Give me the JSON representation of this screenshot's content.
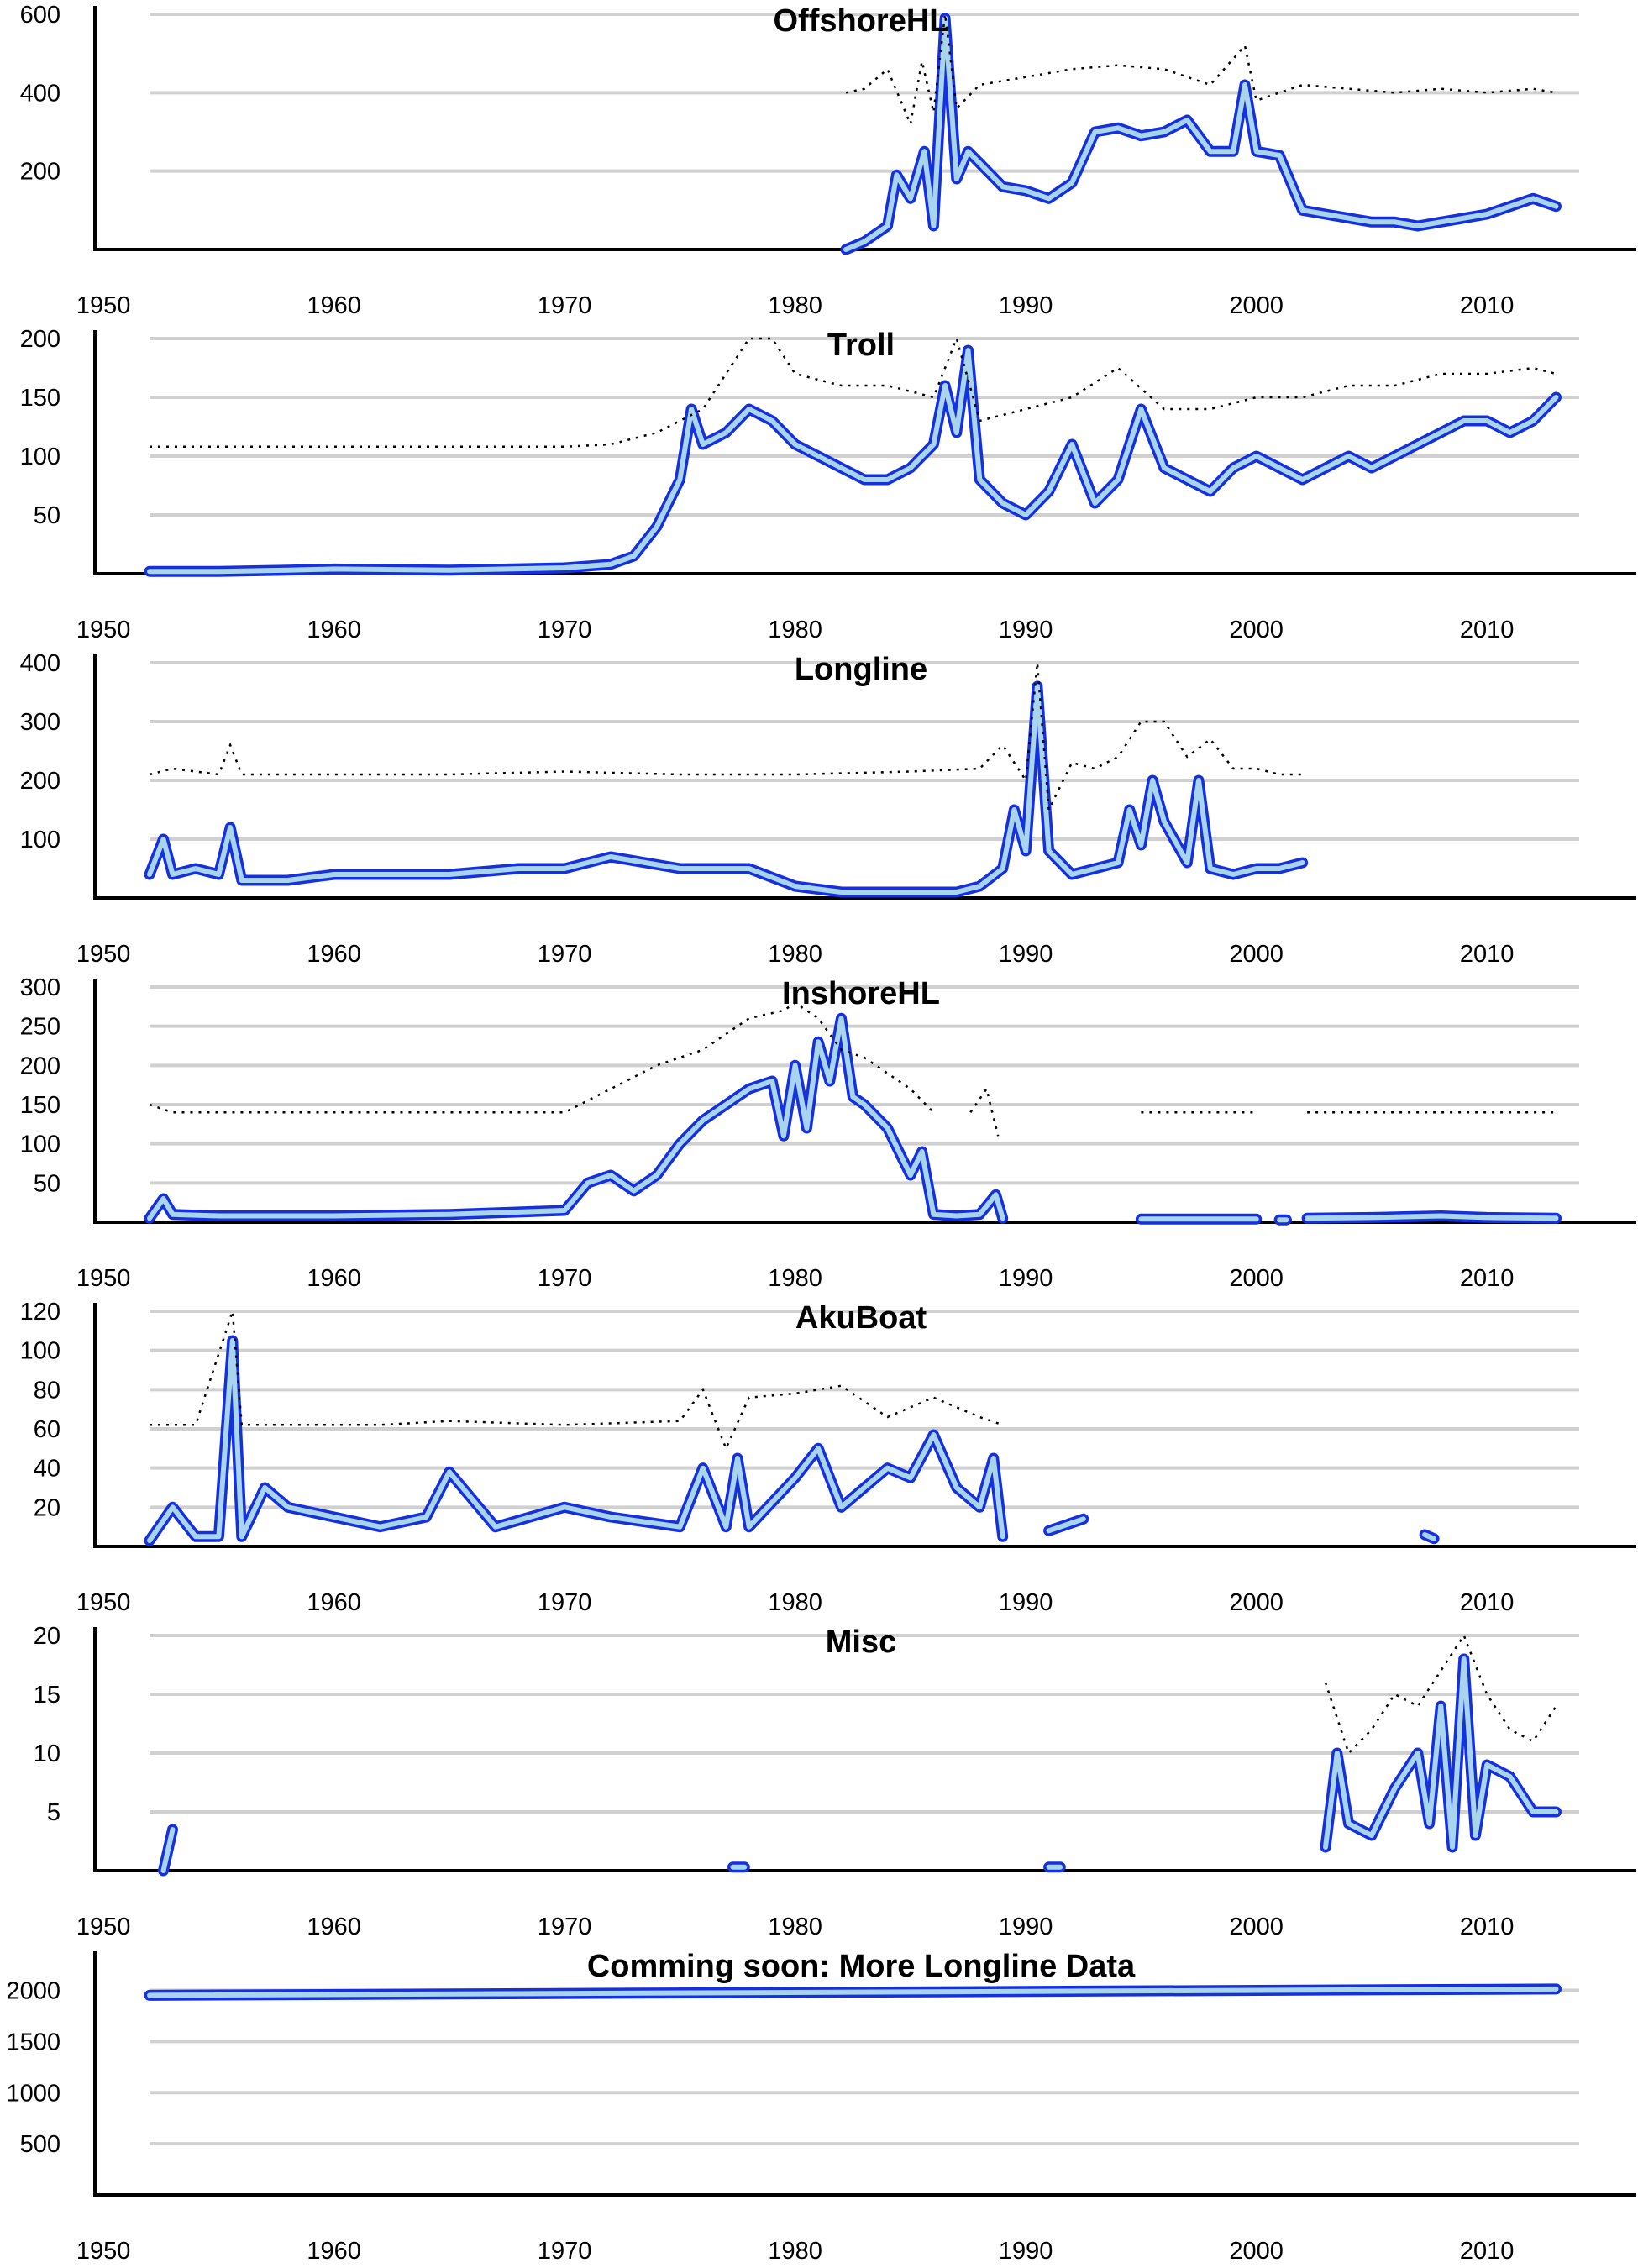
{
  "figure": {
    "background": "#ffffff",
    "band_outline_color": "#1530e0",
    "band_fill_color": "#a8d4ec",
    "reference_line_color": "#000000",
    "grid_color": "#d0d0d0"
  },
  "chart_data": [
    {
      "type": "line",
      "title": "OffshoreHL",
      "xlabel": "",
      "ylabel": "",
      "xlim": [
        1950,
        2013
      ],
      "ylim": [
        0,
        600
      ],
      "yticks": [
        200,
        400,
        600
      ],
      "xticks": [
        1950,
        1960,
        1970,
        1980,
        1990,
        2000,
        2010
      ],
      "grid": true,
      "series": [
        {
          "style": "band",
          "x": [
            1982.2,
            1983,
            1984,
            1984.4,
            1985,
            1985.6,
            1986,
            1986.5,
            1987,
            1987.5,
            1988,
            1989,
            1990,
            1991,
            1992,
            1993,
            1994,
            1995,
            1996,
            1997,
            1998,
            1999,
            1999.5,
            2000,
            2001,
            2002,
            2003,
            2004,
            2005,
            2006,
            2007,
            2008,
            2009,
            2010,
            2011,
            2012,
            2013
          ],
          "y": [
            0,
            20,
            60,
            190,
            130,
            250,
            60,
            590,
            180,
            250,
            220,
            160,
            150,
            130,
            170,
            300,
            310,
            290,
            300,
            330,
            250,
            250,
            420,
            250,
            240,
            100,
            90,
            80,
            70,
            70,
            60,
            70,
            80,
            90,
            110,
            130,
            110
          ]
        },
        {
          "style": "reference",
          "x": [
            1982.2,
            1983,
            1984,
            1985,
            1985.5,
            1986,
            1986.5,
            1987,
            1988,
            1990,
            1992,
            1994,
            1996,
            1998,
            1999.5,
            2000,
            2002,
            2004,
            2006,
            2008,
            2010,
            2012,
            2013
          ],
          "y": [
            400,
            410,
            460,
            320,
            480,
            350,
            600,
            360,
            420,
            440,
            460,
            470,
            460,
            420,
            520,
            380,
            420,
            410,
            400,
            410,
            400,
            410,
            400
          ]
        }
      ]
    },
    {
      "type": "line",
      "title": "Troll",
      "xlabel": "",
      "ylabel": "",
      "xlim": [
        1950,
        2013
      ],
      "ylim": [
        0,
        200
      ],
      "yticks": [
        50,
        100,
        150,
        200
      ],
      "xticks": [
        1950,
        1960,
        1970,
        1980,
        1990,
        2000,
        2010
      ],
      "grid": true,
      "series": [
        {
          "style": "band",
          "x": [
            1952,
            1955,
            1958,
            1960,
            1965,
            1970,
            1972,
            1973,
            1974,
            1975,
            1975.5,
            1976,
            1977,
            1978,
            1979,
            1980,
            1981,
            1982,
            1983,
            1984,
            1985,
            1986,
            1986.5,
            1987,
            1987.5,
            1988,
            1989,
            1990,
            1991,
            1992,
            1993,
            1994,
            1995,
            1996,
            1997,
            1998,
            1999,
            2000,
            2001,
            2002,
            2003,
            2004,
            2005,
            2006,
            2007,
            2008,
            2009,
            2010,
            2011,
            2012,
            2013
          ],
          "y": [
            2,
            2,
            3,
            4,
            3,
            5,
            8,
            15,
            40,
            80,
            140,
            110,
            120,
            140,
            130,
            110,
            100,
            90,
            80,
            80,
            90,
            110,
            160,
            120,
            190,
            80,
            60,
            50,
            70,
            110,
            60,
            80,
            140,
            90,
            80,
            70,
            90,
            100,
            90,
            80,
            90,
            100,
            90,
            100,
            110,
            120,
            130,
            130,
            120,
            130,
            150
          ]
        },
        {
          "style": "reference",
          "x": [
            1952,
            1955,
            1960,
            1965,
            1970,
            1972,
            1974,
            1976,
            1978,
            1979,
            1980,
            1982,
            1984,
            1986,
            1987,
            1988,
            1990,
            1992,
            1994,
            1996,
            1998,
            2000,
            2002,
            2004,
            2006,
            2008,
            2010,
            2012,
            2013
          ],
          "y": [
            108,
            108,
            108,
            108,
            108,
            110,
            120,
            140,
            210,
            200,
            170,
            160,
            160,
            150,
            215,
            130,
            140,
            150,
            175,
            140,
            140,
            150,
            150,
            160,
            160,
            170,
            170,
            175,
            170
          ]
        }
      ]
    },
    {
      "type": "line",
      "title": "Longline",
      "xlabel": "",
      "ylabel": "",
      "xlim": [
        1950,
        2013
      ],
      "ylim": [
        0,
        400
      ],
      "yticks": [
        100,
        200,
        300,
        400
      ],
      "xticks": [
        1950,
        1960,
        1970,
        1980,
        1990,
        2000,
        2010
      ],
      "grid": true,
      "series": [
        {
          "style": "band",
          "x": [
            1952,
            1952.6,
            1953,
            1954,
            1955,
            1955.5,
            1956,
            1958,
            1960,
            1962,
            1965,
            1968,
            1970,
            1972,
            1975,
            1978,
            1980,
            1982,
            1985,
            1987,
            1988,
            1989,
            1989.5,
            1990,
            1990.5,
            1991,
            1992,
            1993,
            1994,
            1994.5,
            1995,
            1995.5,
            1996,
            1997,
            1997.5,
            1998,
            1999,
            2000,
            2001,
            2002
          ],
          "y": [
            40,
            100,
            40,
            50,
            40,
            120,
            30,
            30,
            40,
            40,
            40,
            50,
            50,
            70,
            50,
            50,
            20,
            10,
            10,
            10,
            20,
            50,
            150,
            80,
            360,
            80,
            40,
            50,
            60,
            150,
            90,
            200,
            130,
            60,
            200,
            50,
            40,
            50,
            50,
            60
          ]
        },
        {
          "style": "reference",
          "x": [
            1952,
            1953,
            1955,
            1955.5,
            1956,
            1960,
            1965,
            1970,
            1975,
            1980,
            1985,
            1988,
            1989,
            1990,
            1990.5,
            1991,
            1992,
            1993,
            1994,
            1995,
            1996,
            1997,
            1998,
            1999,
            2000,
            2001,
            2002
          ],
          "y": [
            210,
            220,
            210,
            260,
            210,
            210,
            210,
            215,
            210,
            210,
            215,
            220,
            260,
            200,
            410,
            150,
            230,
            220,
            240,
            300,
            300,
            240,
            270,
            220,
            220,
            210,
            210
          ]
        }
      ]
    },
    {
      "type": "line",
      "title": "InshoreHL",
      "xlabel": "",
      "ylabel": "",
      "xlim": [
        1950,
        2013
      ],
      "ylim": [
        0,
        300
      ],
      "yticks": [
        50,
        100,
        150,
        200,
        250,
        300
      ],
      "xticks": [
        1950,
        1960,
        1970,
        1980,
        1990,
        2000,
        2010
      ],
      "grid": true,
      "series": [
        {
          "style": "band",
          "x": [
            1952,
            1952.6,
            1953,
            1955,
            1960,
            1965,
            1970,
            1971,
            1972,
            1973,
            1974,
            1975,
            1976,
            1977,
            1978,
            1979,
            1979.5,
            1980,
            1980.5,
            1981,
            1981.5,
            1982,
            1982.5,
            1983,
            1984,
            1985,
            1985.5,
            1986,
            1987,
            1988,
            1988.7,
            1989
          ],
          "y": [
            5,
            30,
            10,
            8,
            8,
            10,
            15,
            50,
            60,
            40,
            60,
            100,
            130,
            150,
            170,
            180,
            110,
            200,
            120,
            230,
            180,
            260,
            160,
            150,
            120,
            60,
            90,
            10,
            8,
            10,
            35,
            5
          ]
        },
        {
          "style": "band",
          "x": [
            1995,
            1997,
            2000
          ],
          "y": [
            4,
            4,
            4
          ]
        },
        {
          "style": "band",
          "x": [
            2001,
            2001.3
          ],
          "y": [
            3,
            3
          ]
        },
        {
          "style": "band",
          "x": [
            2002.2,
            2005,
            2008,
            2010,
            2013
          ],
          "y": [
            5,
            6,
            8,
            6,
            5
          ]
        },
        {
          "style": "reference",
          "x": [
            1952,
            1953,
            1955,
            1960,
            1965,
            1970,
            1972,
            1974,
            1976,
            1978,
            1979.5,
            1980,
            1981,
            1982,
            1983,
            1984,
            1985,
            1986
          ],
          "y": [
            150,
            140,
            140,
            140,
            140,
            140,
            170,
            200,
            220,
            260,
            270,
            280,
            260,
            220,
            210,
            190,
            170,
            140
          ]
        },
        {
          "style": "reference",
          "x": [
            1987.6,
            1988.3,
            1988.8
          ],
          "y": [
            140,
            170,
            110
          ]
        },
        {
          "style": "reference",
          "x": [
            1995,
            2000
          ],
          "y": [
            140,
            140
          ]
        },
        {
          "style": "reference",
          "x": [
            2002.2,
            2013
          ],
          "y": [
            140,
            140
          ]
        }
      ]
    },
    {
      "type": "line",
      "title": "AkuBoat",
      "xlabel": "",
      "ylabel": "",
      "xlim": [
        1950,
        2013
      ],
      "ylim": [
        0,
        120
      ],
      "yticks": [
        20,
        40,
        60,
        80,
        100,
        120
      ],
      "xticks": [
        1950,
        1960,
        1970,
        1980,
        1990,
        2000,
        2010
      ],
      "grid": true,
      "series": [
        {
          "style": "band",
          "x": [
            1952,
            1953,
            1954,
            1955,
            1955.6,
            1956,
            1957,
            1958,
            1960,
            1962,
            1964,
            1965,
            1967,
            1970,
            1972,
            1975,
            1976,
            1977,
            1977.5,
            1978,
            1980,
            1981,
            1982,
            1983,
            1984,
            1985,
            1986,
            1987,
            1988,
            1988.6,
            1989
          ],
          "y": [
            3,
            20,
            5,
            5,
            105,
            5,
            30,
            20,
            15,
            10,
            15,
            38,
            10,
            20,
            15,
            10,
            40,
            10,
            45,
            10,
            35,
            50,
            20,
            30,
            40,
            35,
            57,
            30,
            20,
            45,
            5
          ]
        },
        {
          "style": "band",
          "x": [
            1991,
            1992.5
          ],
          "y": [
            8,
            14
          ]
        },
        {
          "style": "band",
          "x": [
            2007.3,
            2007.7
          ],
          "y": [
            6,
            4
          ]
        },
        {
          "style": "reference",
          "x": [
            1952,
            1954,
            1955.6,
            1956,
            1958,
            1960,
            1962,
            1965,
            1970,
            1975,
            1976,
            1977,
            1978,
            1980,
            1982,
            1984,
            1986,
            1988,
            1989
          ],
          "y": [
            62,
            62,
            120,
            62,
            62,
            62,
            62,
            64,
            62,
            64,
            80,
            50,
            76,
            78,
            82,
            66,
            76,
            66,
            62
          ]
        }
      ]
    },
    {
      "type": "line",
      "title": "Misc",
      "xlabel": "",
      "ylabel": "",
      "xlim": [
        1950,
        2013
      ],
      "ylim": [
        0,
        20
      ],
      "yticks": [
        5,
        10,
        15,
        20
      ],
      "xticks": [
        1950,
        1960,
        1970,
        1980,
        1990,
        2000,
        2010
      ],
      "grid": true,
      "series": [
        {
          "style": "band",
          "x": [
            1952.6,
            1953
          ],
          "y": [
            0,
            3.5
          ]
        },
        {
          "style": "band",
          "x": [
            1977.3,
            1977.8
          ],
          "y": [
            0.3,
            0.3
          ]
        },
        {
          "style": "band",
          "x": [
            1991,
            1991.5
          ],
          "y": [
            0.3,
            0.3
          ]
        },
        {
          "style": "band",
          "x": [
            2003,
            2003.5,
            2004,
            2005,
            2006,
            2007,
            2007.5,
            2008,
            2008.5,
            2009,
            2009.5,
            2010,
            2011,
            2012,
            2013
          ],
          "y": [
            2,
            10,
            4,
            3,
            7,
            10,
            4,
            14,
            2,
            18,
            3,
            9,
            8,
            5,
            5
          ]
        },
        {
          "style": "reference",
          "x": [
            2003,
            2004,
            2005,
            2006,
            2007,
            2008,
            2009,
            2010,
            2011,
            2012,
            2013
          ],
          "y": [
            16,
            10,
            12,
            15,
            14,
            17,
            20,
            15,
            12,
            11,
            14
          ]
        }
      ]
    },
    {
      "type": "line",
      "title": "Comming soon: More Longline Data",
      "xlabel": "",
      "ylabel": "",
      "xlim": [
        1950,
        2013
      ],
      "ylim": [
        0,
        2300
      ],
      "yticks": [
        500,
        1000,
        1500,
        2000
      ],
      "xticks": [
        1950,
        1960,
        1970,
        1980,
        1990,
        2000,
        2010
      ],
      "grid": true,
      "series": [
        {
          "style": "band",
          "x": [
            1952,
            2013
          ],
          "y": [
            1952,
            2013
          ]
        }
      ]
    }
  ]
}
